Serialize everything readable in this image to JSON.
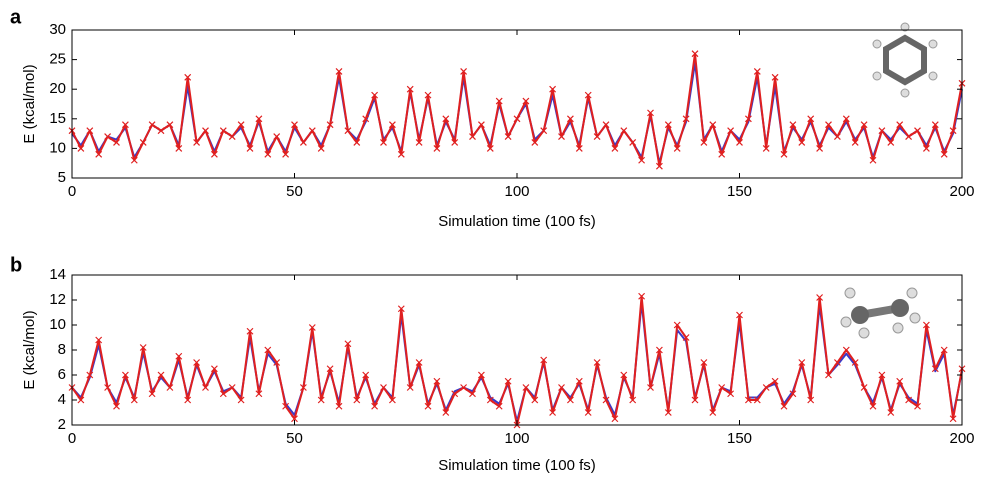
{
  "chart_data": [
    {
      "type": "line",
      "panel_label": "a",
      "xlabel": "Simulation time (100 fs)",
      "ylabel": "E (kcal/mol)",
      "xlim": [
        0,
        200
      ],
      "ylim": [
        5,
        30
      ],
      "xticks": [
        0,
        50,
        100,
        150,
        200
      ],
      "yticks": [
        5,
        10,
        15,
        20,
        25,
        30
      ],
      "x": [
        0,
        2,
        4,
        6,
        8,
        10,
        12,
        14,
        16,
        18,
        20,
        22,
        24,
        26,
        28,
        30,
        32,
        34,
        36,
        38,
        40,
        42,
        44,
        46,
        48,
        50,
        52,
        54,
        56,
        58,
        60,
        62,
        64,
        66,
        68,
        70,
        72,
        74,
        76,
        78,
        80,
        82,
        84,
        86,
        88,
        90,
        92,
        94,
        96,
        98,
        100,
        102,
        104,
        106,
        108,
        110,
        112,
        114,
        116,
        118,
        120,
        122,
        124,
        126,
        128,
        130,
        132,
        134,
        136,
        138,
        140,
        142,
        144,
        146,
        148,
        150,
        152,
        154,
        156,
        158,
        160,
        162,
        164,
        166,
        168,
        170,
        172,
        174,
        176,
        178,
        180,
        182,
        184,
        186,
        188,
        190,
        192,
        194,
        196,
        198,
        200
      ],
      "series": [
        {
          "color": "#3a3ac8",
          "marker": "none",
          "values": [
            12.5,
            10.5,
            13,
            9.5,
            12,
            11.5,
            13.5,
            8.5,
            11,
            14,
            13,
            14,
            10.5,
            20.5,
            11,
            13,
            9.5,
            13,
            12,
            13.5,
            10.5,
            14.5,
            9.5,
            12,
            9.5,
            13.5,
            11,
            13,
            10.5,
            14,
            22,
            13,
            11.5,
            14.5,
            18.5,
            11.5,
            13.5,
            9.5,
            19.5,
            11.5,
            18.5,
            10.5,
            14.5,
            11.5,
            22,
            12,
            14,
            10.5,
            17.5,
            12,
            15,
            17.5,
            11.5,
            13,
            19,
            12,
            14.5,
            10.5,
            18.5,
            12,
            14,
            10.5,
            13,
            11,
            8.5,
            15.5,
            7.5,
            13.5,
            10.5,
            14.5,
            24.5,
            11.5,
            14,
            9.5,
            13,
            11.5,
            14.5,
            22,
            10.5,
            20.5,
            9.5,
            13.5,
            11.5,
            14.5,
            10.5,
            13.5,
            12,
            14.5,
            11.5,
            13.5,
            8.5,
            13,
            11.5,
            13.5,
            12,
            13,
            10.5,
            13.5,
            9.5,
            12.5,
            20
          ]
        },
        {
          "color": "#e02020",
          "marker": "x",
          "values": [
            13,
            10,
            13,
            9,
            12,
            11,
            14,
            8,
            11,
            14,
            13,
            14,
            10,
            22,
            11,
            13,
            9,
            13,
            12,
            14,
            10,
            15,
            9,
            12,
            9,
            14,
            11,
            13,
            10,
            14,
            23,
            13,
            11,
            15,
            19,
            11,
            14,
            9,
            20,
            11,
            19,
            10,
            15,
            11,
            23,
            12,
            14,
            10,
            18,
            12,
            15,
            18,
            11,
            13,
            20,
            12,
            15,
            10,
            19,
            12,
            14,
            10,
            13,
            11,
            8,
            16,
            7,
            14,
            10,
            15,
            26,
            11,
            14,
            9,
            13,
            11,
            15,
            23,
            10,
            22,
            9,
            14,
            11,
            15,
            10,
            14,
            12,
            15,
            11,
            14,
            8,
            13,
            11,
            14,
            12,
            13,
            10,
            14,
            9,
            13,
            21
          ]
        }
      ]
    },
    {
      "type": "line",
      "panel_label": "b",
      "xlabel": "Simulation time (100 fs)",
      "ylabel": "E (kcal/mol)",
      "xlim": [
        0,
        200
      ],
      "ylim": [
        2,
        14
      ],
      "xticks": [
        0,
        50,
        100,
        150,
        200
      ],
      "yticks": [
        2,
        4,
        6,
        8,
        10,
        12,
        14
      ],
      "x": [
        0,
        2,
        4,
        6,
        8,
        10,
        12,
        14,
        16,
        18,
        20,
        22,
        24,
        26,
        28,
        30,
        32,
        34,
        36,
        38,
        40,
        42,
        44,
        46,
        48,
        50,
        52,
        54,
        56,
        58,
        60,
        62,
        64,
        66,
        68,
        70,
        72,
        74,
        76,
        78,
        80,
        82,
        84,
        86,
        88,
        90,
        92,
        94,
        96,
        98,
        100,
        102,
        104,
        106,
        108,
        110,
        112,
        114,
        116,
        118,
        120,
        122,
        124,
        126,
        128,
        130,
        132,
        134,
        136,
        138,
        140,
        142,
        144,
        146,
        148,
        150,
        152,
        154,
        156,
        158,
        160,
        162,
        164,
        166,
        168,
        170,
        172,
        174,
        176,
        178,
        180,
        182,
        184,
        186,
        188,
        190,
        192,
        194,
        196,
        198,
        200
      ],
      "series": [
        {
          "color": "#3a3ac8",
          "marker": "none",
          "values": [
            5,
            4.2,
            5.8,
            8.4,
            5,
            3.8,
            5.8,
            4.2,
            7.8,
            4.7,
            5.8,
            5,
            7.2,
            4.2,
            6.8,
            5,
            6.3,
            4.7,
            5,
            4.2,
            9,
            4.7,
            7.7,
            6.8,
            3.7,
            2.8,
            5,
            9.5,
            4.2,
            6.3,
            3.8,
            8.2,
            4.2,
            5.8,
            3.7,
            5,
            4.2,
            10.8,
            5,
            6.8,
            3.7,
            5.3,
            3.2,
            4.7,
            5,
            4.7,
            5.8,
            4.2,
            3.7,
            5.3,
            2.3,
            5,
            4.2,
            7,
            3.2,
            5,
            4.2,
            5.3,
            3.2,
            6.8,
            4.2,
            2.8,
            5.8,
            4.2,
            11.8,
            5,
            7.7,
            3.2,
            9.6,
            8.7,
            4.2,
            6.8,
            3.2,
            5,
            4.7,
            10.2,
            4.2,
            4.2,
            5,
            5.3,
            3.7,
            4.7,
            6.8,
            4.2,
            11.6,
            6,
            6.8,
            7.7,
            6.8,
            5,
            3.8,
            5.8,
            3.2,
            5.3,
            4.2,
            3.7,
            9.6,
            6.3,
            7.7,
            2.8,
            6.3
          ]
        },
        {
          "color": "#e02020",
          "marker": "x",
          "values": [
            5,
            4,
            6,
            8.8,
            5,
            3.5,
            6,
            4,
            8.2,
            4.5,
            6,
            5,
            7.5,
            4,
            7,
            5,
            6.5,
            4.5,
            5,
            4,
            9.5,
            4.5,
            8,
            7,
            3.5,
            2.5,
            5,
            9.8,
            4,
            6.5,
            3.5,
            8.5,
            4,
            6,
            3.5,
            5,
            4,
            11.3,
            5,
            7,
            3.5,
            5.5,
            3,
            4.5,
            5,
            4.5,
            6,
            4,
            3.5,
            5.5,
            2,
            5,
            4,
            7.2,
            3,
            5,
            4,
            5.5,
            3,
            7,
            4,
            2.5,
            6,
            4,
            12.3,
            5,
            8,
            3,
            10,
            9,
            4,
            7,
            3,
            5,
            4.5,
            10.8,
            4,
            4,
            5,
            5.5,
            3.5,
            4.5,
            7,
            4,
            12.2,
            6,
            7,
            8,
            7,
            5,
            3.5,
            6,
            3,
            5.5,
            4,
            3.5,
            10,
            6.5,
            8,
            2.5,
            6.5
          ]
        }
      ]
    }
  ]
}
